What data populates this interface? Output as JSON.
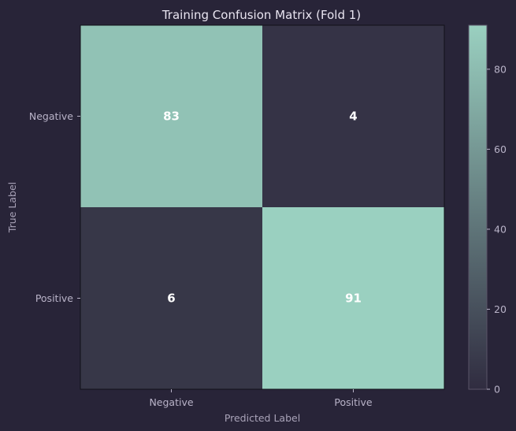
{
  "chart_data": {
    "type": "heatmap",
    "title": "Training Confusion Matrix (Fold 1)",
    "xlabel": "Predicted Label",
    "ylabel": "True Label",
    "x_categories": [
      "Negative",
      "Positive"
    ],
    "y_categories": [
      "Negative",
      "Positive"
    ],
    "values": [
      [
        83,
        4
      ],
      [
        6,
        91
      ]
    ],
    "colorbar": {
      "range": [
        0,
        91
      ],
      "ticks": [
        0,
        20,
        40,
        60,
        80
      ],
      "colors": [
        "#302c40",
        "#9ad0c0"
      ]
    },
    "cell_text_color": "#ffffff"
  }
}
